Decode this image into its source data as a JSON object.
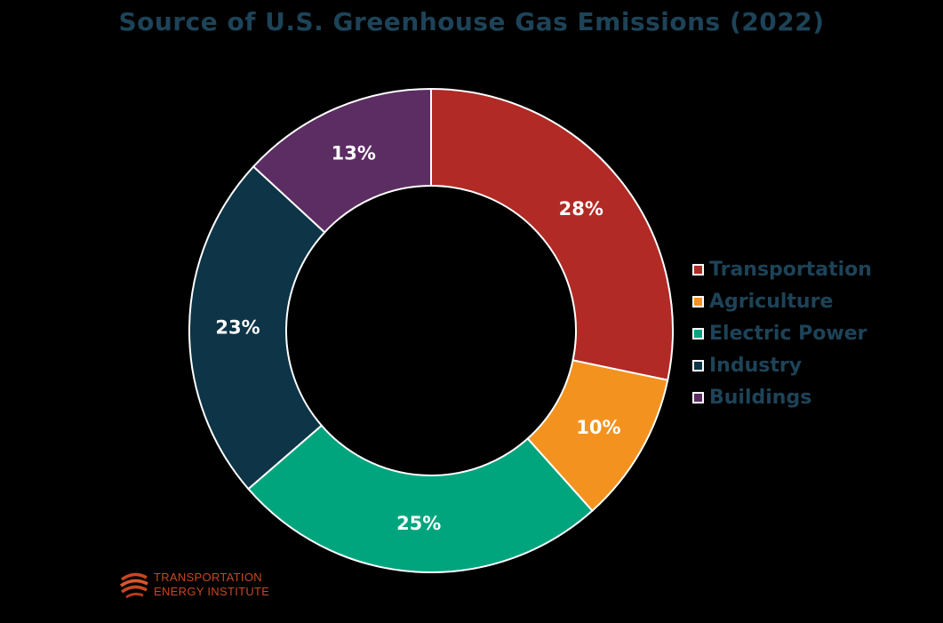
{
  "chart_data": {
    "type": "pie",
    "title": "Source of U.S. Greenhouse Gas Emissions (2022)",
    "donut": true,
    "legend_position": "right",
    "categories": [
      "Transportation",
      "Agriculture",
      "Electric Power",
      "Industry",
      "Buildings"
    ],
    "values": [
      28,
      10,
      25,
      23,
      13
    ],
    "value_labels": [
      "28%",
      "10%",
      "25%",
      "23%",
      "13%"
    ],
    "colors": [
      "#b12a25",
      "#f4921f",
      "#00a57e",
      "#0d3447",
      "#5c2d62"
    ]
  },
  "logo": {
    "line1": "TRANSPORTATION",
    "line2": "ENERGY INSTITUTE"
  }
}
